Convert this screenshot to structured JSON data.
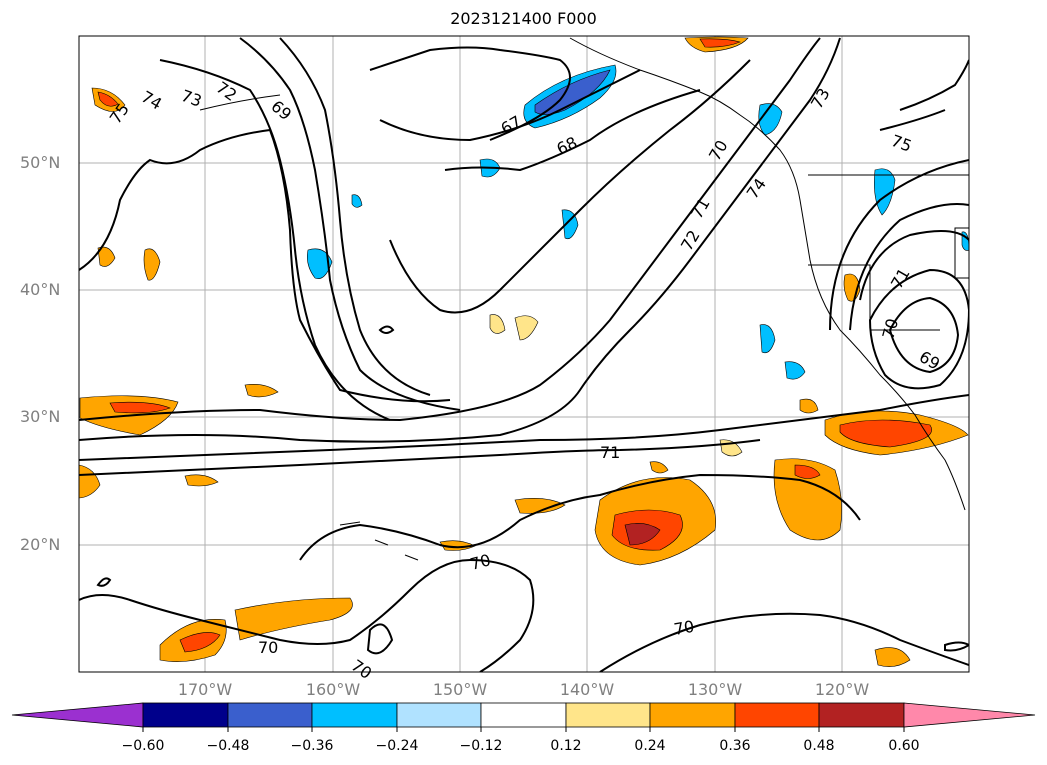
{
  "map": {
    "title": "2023121400 F000",
    "lat_labels": [
      "50°N",
      "40°N",
      "30°N",
      "20°N"
    ],
    "lon_labels": [
      "170°W",
      "160°W",
      "150°W",
      "140°W",
      "130°W",
      "120°W"
    ],
    "contour_labels": [
      "74",
      "73",
      "72",
      "75",
      "69",
      "67",
      "68",
      "70",
      "71",
      "72",
      "74",
      "73",
      "75",
      "71",
      "70",
      "69",
      "71",
      "70",
      "70",
      "70",
      "70"
    ],
    "colorbar": {
      "ticks": [
        "−0.60",
        "−0.48",
        "−0.36",
        "−0.24",
        "−0.12",
        "0.12",
        "0.24",
        "0.36",
        "0.48",
        "0.60"
      ],
      "colors": [
        "#9b30d0",
        "#00008b",
        "#3a5fcd",
        "#00bfff",
        "#b0e2ff",
        "#ffffff",
        "#ffe58a",
        "#ffa500",
        "#ff4500",
        "#b22222",
        "#ff88aa"
      ]
    }
  }
}
